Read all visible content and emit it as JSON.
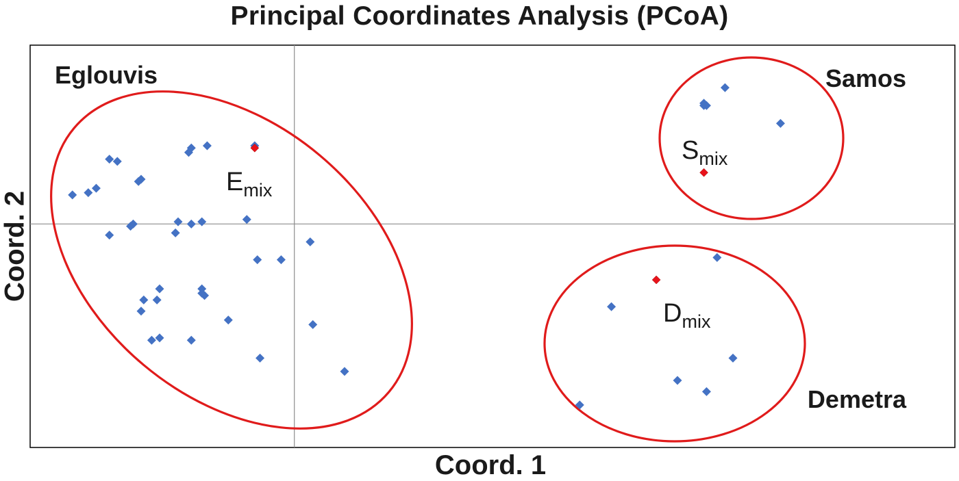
{
  "chart_data": {
    "type": "scatter",
    "title": "Principal Coordinates Analysis (PCoA)",
    "xlabel": "Coord. 1",
    "ylabel": "Coord. 2",
    "xlim": [
      -1.0,
      2.5
    ],
    "ylim": [
      -1.0,
      0.8
    ],
    "grid": false,
    "zero_lines": true,
    "colors": {
      "sample": "#4472c4",
      "mix": "#e8131b",
      "ellipse": "#e01b1b",
      "axis": "#8c8c8c"
    },
    "series": [
      {
        "name": "Eglouvis",
        "color": "#4472c4",
        "points": [
          [
            -0.15,
            0.35
          ],
          [
            -0.39,
            0.34
          ],
          [
            -0.4,
            0.32
          ],
          [
            -0.33,
            0.35
          ],
          [
            -0.7,
            0.29
          ],
          [
            -0.67,
            0.28
          ],
          [
            -0.58,
            0.2
          ],
          [
            -0.59,
            0.19
          ],
          [
            -0.84,
            0.13
          ],
          [
            -0.78,
            0.14
          ],
          [
            -0.75,
            0.16
          ],
          [
            -0.61,
            0.0
          ],
          [
            -0.62,
            -0.01
          ],
          [
            -0.44,
            0.01
          ],
          [
            -0.39,
            0.0
          ],
          [
            -0.35,
            0.01
          ],
          [
            -0.18,
            0.02
          ],
          [
            -0.7,
            -0.05
          ],
          [
            -0.45,
            -0.04
          ],
          [
            0.06,
            -0.08
          ],
          [
            -0.14,
            -0.16
          ],
          [
            -0.05,
            -0.16
          ],
          [
            -0.51,
            -0.29
          ],
          [
            -0.35,
            -0.29
          ],
          [
            -0.34,
            -0.32
          ],
          [
            -0.35,
            -0.31
          ],
          [
            -0.57,
            -0.34
          ],
          [
            -0.52,
            -0.34
          ],
          [
            -0.58,
            -0.39
          ],
          [
            -0.25,
            -0.43
          ],
          [
            0.07,
            -0.45
          ],
          [
            -0.51,
            -0.51
          ],
          [
            -0.54,
            -0.52
          ],
          [
            -0.39,
            -0.52
          ],
          [
            -0.13,
            -0.6
          ],
          [
            0.19,
            -0.66
          ]
        ],
        "mix": {
          "label": "E",
          "subscript": "mix",
          "point": [
            -0.15,
            0.34
          ]
        }
      },
      {
        "name": "Samos",
        "color": "#4472c4",
        "points": [
          [
            1.63,
            0.61
          ],
          [
            1.55,
            0.54
          ],
          [
            1.56,
            0.53
          ],
          [
            1.55,
            0.53
          ],
          [
            1.84,
            0.45
          ]
        ],
        "mix": {
          "label": "S",
          "subscript": "mix",
          "point": [
            1.55,
            0.23
          ]
        }
      },
      {
        "name": "Demetra",
        "color": "#4472c4",
        "points": [
          [
            1.6,
            -0.15
          ],
          [
            1.2,
            -0.37
          ],
          [
            1.66,
            -0.6
          ],
          [
            1.45,
            -0.7
          ],
          [
            1.56,
            -0.75
          ],
          [
            1.08,
            -0.81
          ]
        ],
        "mix": {
          "label": "D",
          "subscript": "mix",
          "point": [
            1.37,
            -0.25
          ]
        }
      }
    ]
  }
}
